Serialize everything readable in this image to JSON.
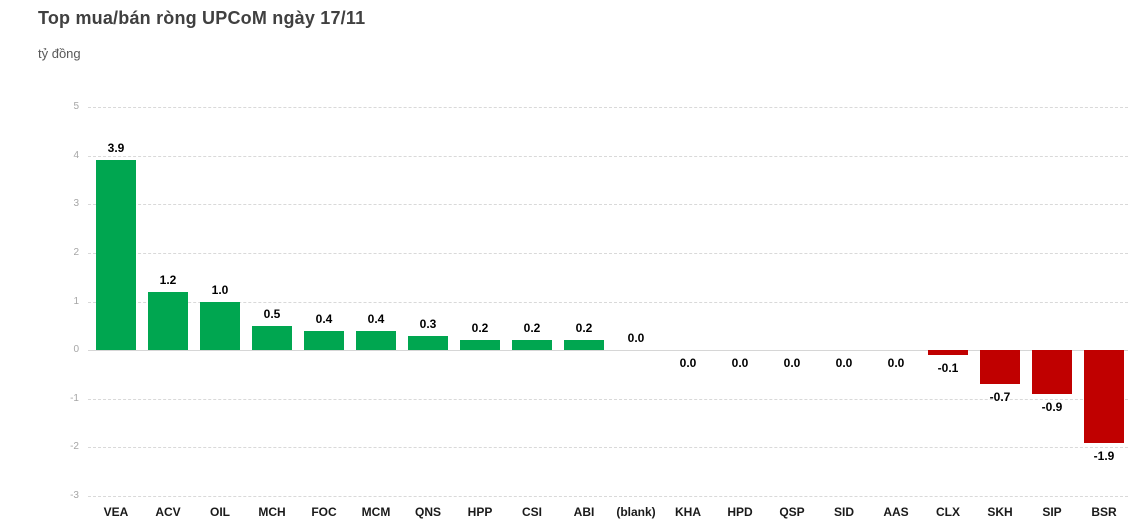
{
  "header": {
    "title": "Top mua/bán ròng UPCoM ngày 17/11",
    "unit_label": "tỷ đồng"
  },
  "chart_data": {
    "type": "bar",
    "title": "Top mua/bán ròng UPCoM ngày 17/11",
    "unit_label": "tỷ đồng",
    "categories": [
      "VEA",
      "ACV",
      "OIL",
      "MCH",
      "FOC",
      "MCM",
      "QNS",
      "HPP",
      "CSI",
      "ABI",
      "(blank)",
      "KHA",
      "HPD",
      "QSP",
      "SID",
      "AAS",
      "CLX",
      "SKH",
      "SIP",
      "BSR"
    ],
    "values": [
      3.9,
      1.2,
      1.0,
      0.5,
      0.4,
      0.4,
      0.3,
      0.2,
      0.2,
      0.2,
      0.0,
      0.0,
      0.0,
      0.0,
      0.0,
      0.0,
      -0.1,
      -0.7,
      -0.9,
      -1.9
    ],
    "value_labels": [
      "3.9",
      "1.2",
      "1.0",
      "0.5",
      "0.4",
      "0.4",
      "0.3",
      "0.2",
      "0.2",
      "0.2",
      "0.0",
      "0.0",
      "0.0",
      "0.0",
      "0.0",
      "0.0",
      "-0.1",
      "-0.7",
      "-0.9",
      "-1.9"
    ],
    "label_side": [
      "above",
      "above",
      "above",
      "above",
      "above",
      "above",
      "above",
      "above",
      "above",
      "above",
      "above",
      "below",
      "below",
      "below",
      "below",
      "below",
      "below",
      "below",
      "below",
      "below"
    ],
    "yticks": [
      5,
      4,
      3,
      2,
      1,
      0,
      -1,
      -2,
      -3
    ],
    "ylim": [
      -3,
      5
    ],
    "xlabel": "",
    "ylabel": "tỷ đồng",
    "grid": "horizontal-dashed",
    "legend": "none",
    "colors": {
      "positive": "#00a650",
      "negative": "#c00000",
      "grid": "#d9d9d9",
      "axis_tick_label": "#a6a6a6",
      "title": "#404040",
      "subtitle": "#595959",
      "data_label": "#000000"
    }
  }
}
